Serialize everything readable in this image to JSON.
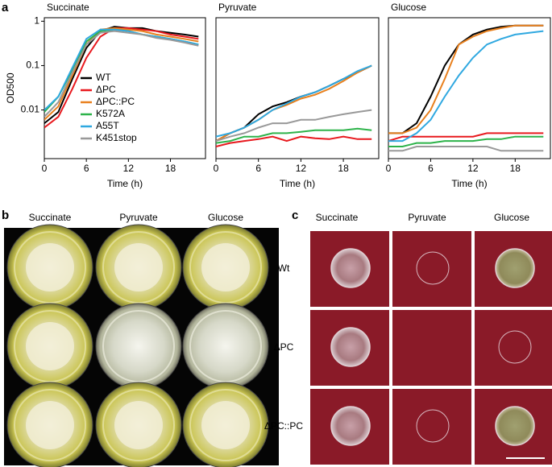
{
  "chart_data": [
    {
      "type": "line",
      "title": "Succinate",
      "xlabel": "Time (h)",
      "ylabel": "OD500",
      "log": true,
      "legend": "center",
      "x": [
        0,
        2,
        4,
        6,
        8,
        10,
        12,
        14,
        16,
        18,
        20,
        22
      ],
      "xlim": [
        0,
        23
      ],
      "xticks": [
        0,
        6,
        12,
        18
      ],
      "ylim": [
        0.0008,
        1.2
      ],
      "yticks": [
        0.01,
        0.1,
        1
      ],
      "series": [
        {
          "name": "WT",
          "color": "#000000",
          "values": [
            0.005,
            0.009,
            0.05,
            0.25,
            0.6,
            0.75,
            0.7,
            0.7,
            0.6,
            0.55,
            0.5,
            0.45
          ]
        },
        {
          "name": "ΔPC",
          "color": "#e8191e",
          "values": [
            0.004,
            0.007,
            0.03,
            0.15,
            0.45,
            0.7,
            0.7,
            0.65,
            0.6,
            0.5,
            0.45,
            0.4
          ]
        },
        {
          "name": "ΔPC::PC",
          "color": "#e8801e",
          "values": [
            0.006,
            0.012,
            0.06,
            0.3,
            0.65,
            0.7,
            0.65,
            0.6,
            0.5,
            0.45,
            0.4,
            0.35
          ]
        },
        {
          "name": "K572A",
          "color": "#2db34a",
          "values": [
            0.009,
            0.02,
            0.08,
            0.35,
            0.6,
            0.65,
            0.6,
            0.5,
            0.45,
            0.4,
            0.35,
            0.3
          ]
        },
        {
          "name": "A55T",
          "color": "#2fa8e0",
          "values": [
            0.01,
            0.02,
            0.09,
            0.4,
            0.65,
            0.65,
            0.6,
            0.5,
            0.45,
            0.4,
            0.35,
            0.3
          ]
        },
        {
          "name": "K451stop",
          "color": "#999999",
          "values": [
            0.007,
            0.015,
            0.07,
            0.3,
            0.55,
            0.6,
            0.55,
            0.5,
            0.42,
            0.38,
            0.33,
            0.28
          ]
        }
      ]
    },
    {
      "type": "line",
      "title": "Pyruvate",
      "xlabel": "Time (h)",
      "log": true,
      "x": [
        0,
        2,
        4,
        6,
        8,
        10,
        12,
        14,
        16,
        18,
        20,
        22
      ],
      "xlim": [
        0,
        23
      ],
      "xticks": [
        0,
        6,
        12,
        18
      ],
      "ylim": [
        0.0008,
        1.2
      ],
      "series": [
        {
          "color": "#000000",
          "values": [
            0.002,
            0.003,
            0.004,
            0.008,
            0.012,
            0.015,
            0.02,
            0.025,
            0.035,
            0.05,
            0.07,
            0.1
          ]
        },
        {
          "color": "#e8191e",
          "values": [
            0.0015,
            0.0018,
            0.002,
            0.0022,
            0.0025,
            0.002,
            0.0025,
            0.0023,
            0.0022,
            0.0025,
            0.0022,
            0.0022
          ]
        },
        {
          "color": "#e8801e",
          "values": [
            0.002,
            0.003,
            0.004,
            0.006,
            0.01,
            0.013,
            0.018,
            0.022,
            0.03,
            0.045,
            0.07,
            0.1
          ]
        },
        {
          "color": "#2db34a",
          "values": [
            0.0018,
            0.002,
            0.0025,
            0.0025,
            0.003,
            0.003,
            0.0032,
            0.0035,
            0.0035,
            0.0035,
            0.0038,
            0.0035
          ]
        },
        {
          "color": "#2fa8e0",
          "values": [
            0.0025,
            0.003,
            0.004,
            0.006,
            0.01,
            0.014,
            0.02,
            0.025,
            0.035,
            0.05,
            0.075,
            0.1
          ]
        },
        {
          "color": "#999999",
          "values": [
            0.002,
            0.0025,
            0.003,
            0.004,
            0.005,
            0.005,
            0.006,
            0.006,
            0.007,
            0.008,
            0.009,
            0.01
          ]
        }
      ]
    },
    {
      "type": "line",
      "title": "Glucose",
      "xlabel": "Time (h)",
      "log": true,
      "x": [
        0,
        2,
        4,
        6,
        8,
        10,
        12,
        14,
        16,
        18,
        20,
        22
      ],
      "xlim": [
        0,
        23
      ],
      "xticks": [
        0,
        6,
        12,
        18
      ],
      "ylim": [
        0.0008,
        1.2
      ],
      "series": [
        {
          "color": "#000000",
          "values": [
            0.003,
            0.003,
            0.005,
            0.02,
            0.1,
            0.3,
            0.5,
            0.65,
            0.75,
            0.8,
            0.8,
            0.8
          ]
        },
        {
          "color": "#e8191e",
          "values": [
            0.002,
            0.0025,
            0.0025,
            0.0025,
            0.0025,
            0.0025,
            0.0025,
            0.003,
            0.003,
            0.003,
            0.003,
            0.003
          ]
        },
        {
          "color": "#e8801e",
          "values": [
            0.003,
            0.003,
            0.004,
            0.01,
            0.05,
            0.3,
            0.45,
            0.6,
            0.7,
            0.8,
            0.8,
            0.8
          ]
        },
        {
          "color": "#2db34a",
          "values": [
            0.0015,
            0.0015,
            0.0018,
            0.0018,
            0.002,
            0.002,
            0.002,
            0.0022,
            0.0022,
            0.0025,
            0.0025,
            0.0025
          ]
        },
        {
          "color": "#2fa8e0",
          "values": [
            0.002,
            0.002,
            0.003,
            0.006,
            0.02,
            0.06,
            0.15,
            0.3,
            0.4,
            0.5,
            0.55,
            0.6
          ]
        },
        {
          "color": "#999999",
          "values": [
            0.0012,
            0.0012,
            0.0015,
            0.0015,
            0.0015,
            0.0015,
            0.0015,
            0.0015,
            0.0012,
            0.0012,
            0.0012,
            0.0012
          ]
        }
      ]
    }
  ],
  "panel_labels": [
    "a",
    "b",
    "c"
  ],
  "panel_b": {
    "columns": [
      "Succinate",
      "Pyruvate",
      "Glucose"
    ]
  },
  "panel_c": {
    "columns": [
      "Succinate",
      "Pyruvate",
      "Glucose"
    ],
    "rows": [
      "Wt",
      "ΔPC",
      "ΔPC::PC"
    ]
  }
}
